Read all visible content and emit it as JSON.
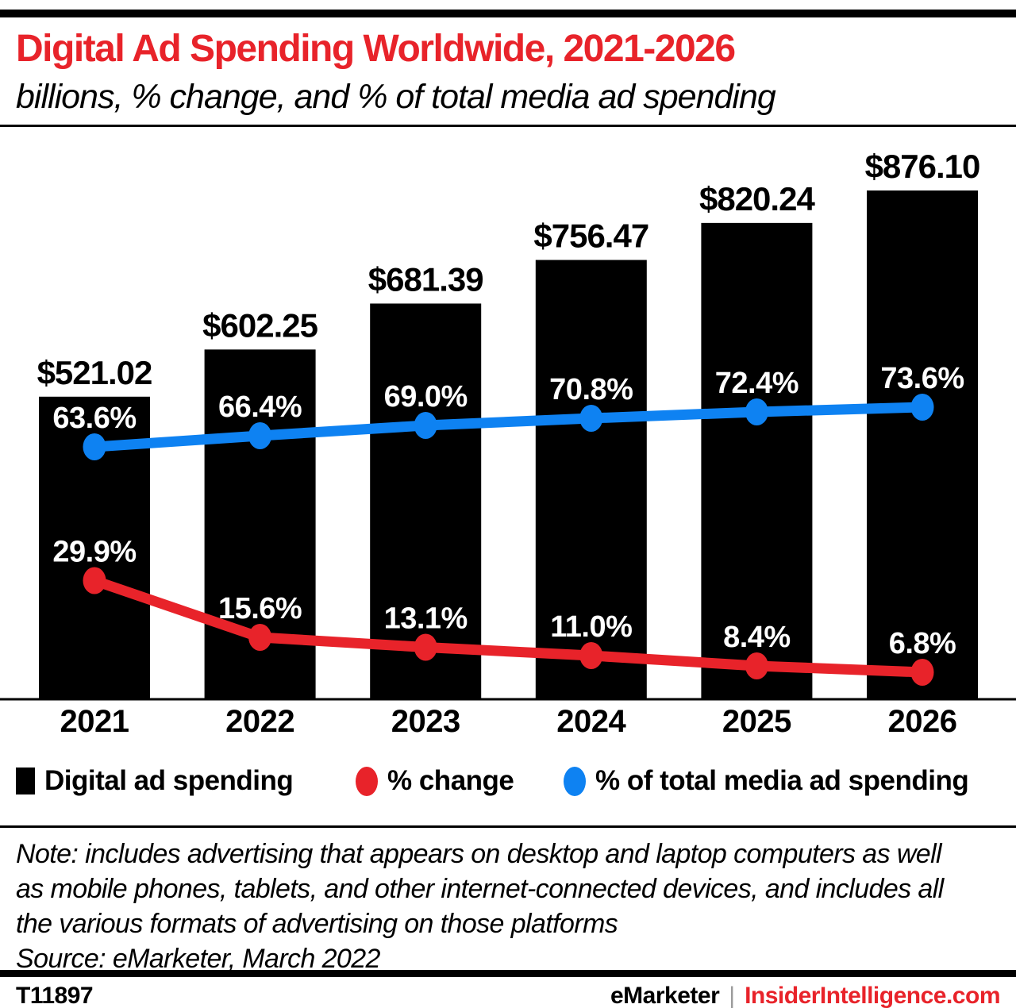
{
  "header": {
    "title": "Digital Ad Spending Worldwide, 2021-2026",
    "subtitle": "billions, % change, and % of total media ad spending"
  },
  "chart_data": {
    "type": "bar",
    "title": "Digital Ad Spending Worldwide, 2021-2026",
    "subtitle": "billions, % change, and % of total media ad spending",
    "categories": [
      "2021",
      "2022",
      "2023",
      "2024",
      "2025",
      "2026"
    ],
    "series": [
      {
        "name": "Digital ad spending",
        "type": "bar",
        "color": "#000000",
        "unit": "US$ billions",
        "values": [
          521.02,
          602.25,
          681.39,
          756.47,
          820.24,
          876.1
        ],
        "labels": [
          "$521.02",
          "$602.25",
          "$681.39",
          "$756.47",
          "$820.24",
          "$876.10"
        ]
      },
      {
        "name": "% change",
        "type": "line",
        "color": "#E8232A",
        "unit": "%",
        "values": [
          29.9,
          15.6,
          13.1,
          11.0,
          8.4,
          6.8
        ],
        "labels": [
          "29.9%",
          "15.6%",
          "13.1%",
          "11.0%",
          "8.4%",
          "6.8%"
        ]
      },
      {
        "name": "% of total media ad spending",
        "type": "line",
        "color": "#0E82F2",
        "unit": "%",
        "values": [
          63.6,
          66.4,
          69.0,
          70.8,
          72.4,
          73.6
        ],
        "labels": [
          "63.6%",
          "66.4%",
          "69.0%",
          "70.8%",
          "72.4%",
          "73.6%"
        ]
      }
    ],
    "xlabel": "",
    "ylabel": "billions",
    "ylim": [
      0,
      876.1
    ],
    "grid": false,
    "legend_position": "bottom"
  },
  "colors": {
    "accent_red": "#E8232A",
    "accent_blue": "#0E82F2",
    "bar_black": "#000000",
    "separator_gray": "#9B9B9B"
  },
  "note": {
    "lines": [
      "Note: includes advertising that appears on desktop and laptop computers as well",
      "as mobile phones, tablets, and other internet-connected devices, and includes all",
      "the various formats of advertising on those platforms"
    ],
    "source": "Source: eMarketer, March 2022"
  },
  "footer": {
    "chart_id": "T11897",
    "brand": "eMarketer",
    "separator": "|",
    "site": "InsiderIntelligence.com"
  }
}
